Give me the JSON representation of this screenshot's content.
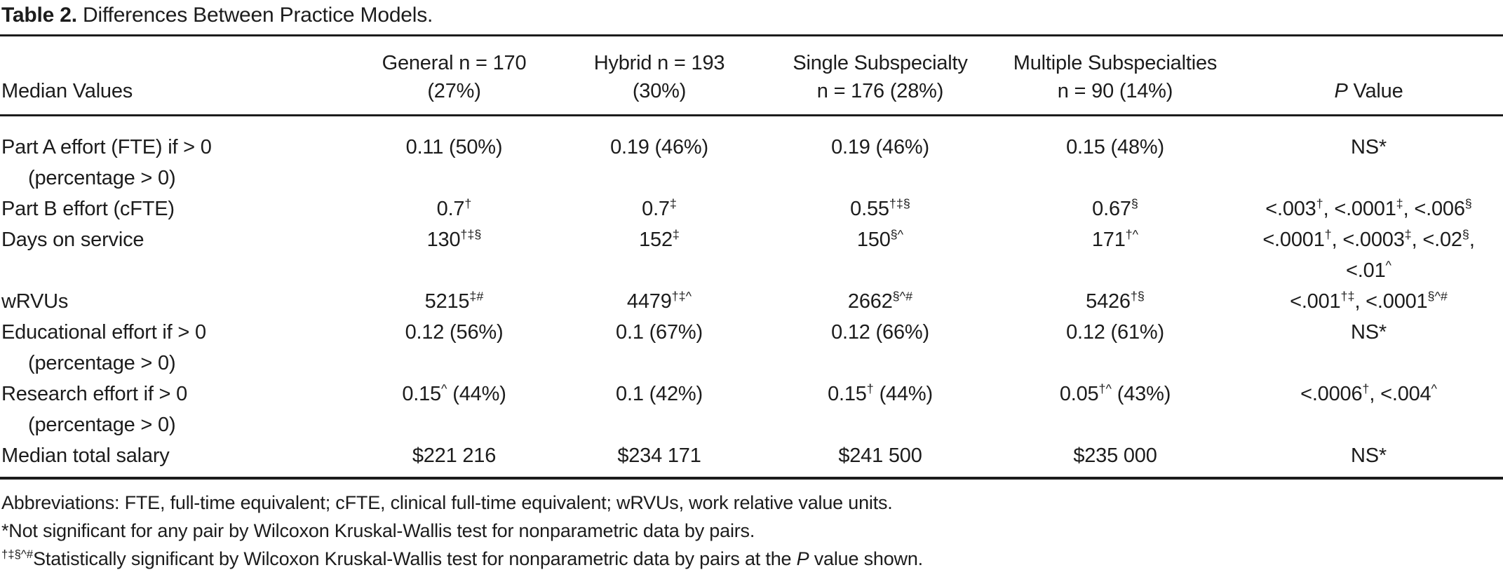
{
  "title": {
    "label": "Table 2.",
    "text": "Differences Between Practice Models."
  },
  "table": {
    "headers": [
      {
        "line1": "",
        "line2": "Median Values"
      },
      {
        "line1": "General n = 170",
        "line2": "(27%)"
      },
      {
        "line1": "Hybrid n = 193",
        "line2": "(30%)"
      },
      {
        "line1": "Single Subspecialty",
        "line2": "n = 176 (28%)"
      },
      {
        "line1": "Multiple Subspecialties",
        "line2": "n = 90 (14%)"
      },
      {
        "line1": "",
        "line2": "*P* Value"
      }
    ],
    "rows": [
      {
        "label": "Part A effort (FTE) if > 0",
        "label2": "(percentage > 0)",
        "cells": [
          "0.11 (50%)",
          "0.19 (46%)",
          "0.19 (46%)",
          "0.15 (48%)",
          "NS*"
        ]
      },
      {
        "label": "Part B effort (cFTE)",
        "label2": "",
        "cells": [
          "0.7^{†}",
          "0.7^{‡}",
          "0.55^{†‡§}",
          "0.67^{§}",
          "<.003^{†}, <.0001^{‡}, <.006^{§}"
        ]
      },
      {
        "label": "Days on service",
        "label2": "",
        "cells": [
          "130^{†‡§}",
          "152^{‡}",
          "150^{§^}",
          "171^{†^}",
          "<.0001^{†}, <.0003^{‡}, <.02^{§},\n<.01^{^}"
        ]
      },
      {
        "label": "wRVUs",
        "label2": "",
        "cells": [
          "5215^{‡#}",
          "4479^{†‡^}",
          "2662^{§^#}",
          "5426^{†§}",
          "<.001^{†‡}, <.0001^{§^#}"
        ]
      },
      {
        "label": "Educational effort if > 0",
        "label2": "(percentage > 0)",
        "cells": [
          "0.12 (56%)",
          "0.1 (67%)",
          "0.12 (66%)",
          "0.12 (61%)",
          "NS*"
        ]
      },
      {
        "label": "Research effort if > 0",
        "label2": "(percentage > 0)",
        "cells": [
          "0.15^{^} (44%)",
          "0.1 (42%)",
          "0.15^{†} (44%)",
          "0.05^{†^} (43%)",
          "<.0006^{†}, <.004^{^}"
        ]
      },
      {
        "label": "Median total salary",
        "label2": "",
        "cells": [
          "$221 216",
          "$234 171",
          "$241 500",
          "$235 000",
          "NS*"
        ]
      }
    ]
  },
  "footnotes": [
    "Abbreviations: FTE, full-time equivalent; cFTE, clinical full-time equivalent; wRVUs, work relative value units.",
    "*Not significant for any pair by Wilcoxon Kruskal-Wallis test for nonparametric data by pairs.",
    "^{†‡§^#}Statistically significant by Wilcoxon Kruskal-Wallis test for nonparametric data by pairs at the *P* value shown."
  ],
  "colors": {
    "text": "#1c1c1c",
    "background": "#ffffff",
    "rule": "#1c1c1c"
  }
}
